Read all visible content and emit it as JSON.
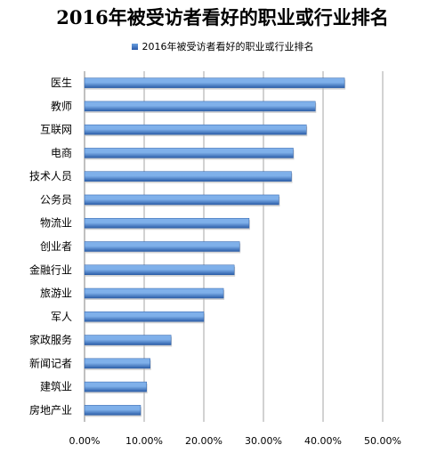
{
  "chart_data": {
    "type": "bar",
    "orientation": "horizontal",
    "title": "2016年被受访者看好的职业或行业排名",
    "legend": {
      "position": "top",
      "entries": [
        "2016年被受访者看好的职业或行业排名"
      ]
    },
    "series": [
      {
        "name": "2016年被受访者看好的职业或行业排名",
        "values": [
          43.6,
          38.7,
          37.2,
          35.0,
          34.7,
          32.6,
          27.6,
          26.0,
          25.1,
          23.3,
          20.0,
          14.5,
          11.0,
          10.4,
          9.4
        ]
      }
    ],
    "categories": [
      "医生",
      "教师",
      "互联网",
      "电商",
      "技术人员",
      "公务员",
      "物流业",
      "创业者",
      "金融行业",
      "旅游业",
      "军人",
      "家政服务",
      "新闻记者",
      "建筑业",
      "房地产业"
    ],
    "x_ticks": [
      "0.00%",
      "10.00%",
      "20.00%",
      "30.00%",
      "40.00%",
      "50.00%"
    ],
    "xlim": [
      0,
      50
    ],
    "grid": "vertical",
    "colors": {
      "bar_light": "#7fb0ea",
      "bar_dark": "#2c5ea8",
      "grid": "#a6a6a6",
      "axis": "#808080"
    }
  }
}
